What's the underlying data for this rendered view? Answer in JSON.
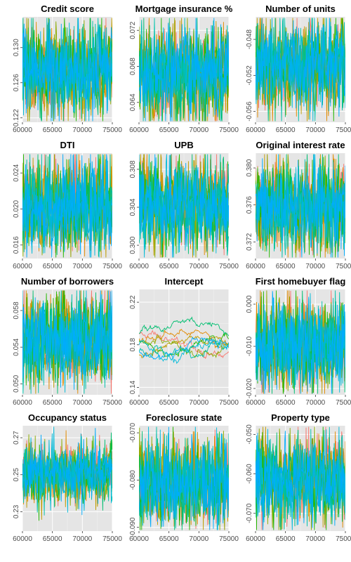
{
  "chart_data": [
    {
      "type": "line",
      "title": "Credit score",
      "xlim": [
        60000,
        75000
      ],
      "ylim": [
        0.1215,
        0.1335
      ],
      "x_ticks": [
        60000,
        65000,
        70000,
        75000
      ],
      "y_ticks": [
        0.122,
        0.126,
        0.13
      ],
      "y_tick_labels": [
        "0.122",
        "0.126",
        "0.130"
      ],
      "center": 0.1275,
      "spread": 0.0025,
      "kind": "noise",
      "grid": true
    },
    {
      "type": "line",
      "title": "Mortgage insurance %",
      "xlim": [
        60000,
        75000
      ],
      "ylim": [
        0.0618,
        0.0735
      ],
      "x_ticks": [
        60000,
        65000,
        70000,
        75000
      ],
      "y_ticks": [
        0.064,
        0.068,
        0.072
      ],
      "y_tick_labels": [
        "0.064",
        "0.068",
        "0.072"
      ],
      "center": 0.0672,
      "spread": 0.0026,
      "kind": "noise",
      "grid": true
    },
    {
      "type": "line",
      "title": "Number of units",
      "xlim": [
        60000,
        75000
      ],
      "ylim": [
        -0.0572,
        -0.0455
      ],
      "x_ticks": [
        60000,
        65000,
        70000,
        75000
      ],
      "y_ticks": [
        -0.056,
        -0.052,
        -0.048
      ],
      "y_tick_labels": [
        "-0.056",
        "-0.052",
        "-0.048"
      ],
      "center": -0.0508,
      "spread": 0.0024,
      "kind": "noise",
      "grid": true
    },
    {
      "type": "line",
      "title": "DTI",
      "xlim": [
        60000,
        75000
      ],
      "ylim": [
        0.0145,
        0.0262
      ],
      "x_ticks": [
        60000,
        65000,
        70000,
        75000
      ],
      "y_ticks": [
        0.016,
        0.02,
        0.024
      ],
      "y_tick_labels": [
        "0.016",
        "0.020",
        "0.024"
      ],
      "center": 0.0203,
      "spread": 0.0025,
      "kind": "noise",
      "grid": true
    },
    {
      "type": "line",
      "title": "UPB",
      "xlim": [
        60000,
        75000
      ],
      "ylim": [
        0.2986,
        0.3097
      ],
      "x_ticks": [
        60000,
        65000,
        70000,
        75000
      ],
      "y_ticks": [
        0.3,
        0.304,
        0.308
      ],
      "y_tick_labels": [
        "0.300",
        "0.304",
        "0.308"
      ],
      "center": 0.3043,
      "spread": 0.0023,
      "kind": "noise",
      "grid": true
    },
    {
      "type": "line",
      "title": "Original interest rate",
      "xlim": [
        60000,
        75000
      ],
      "ylim": [
        0.3702,
        0.3816
      ],
      "x_ticks": [
        60000,
        65000,
        70000,
        75000
      ],
      "y_ticks": [
        0.372,
        0.376,
        0.38
      ],
      "y_tick_labels": [
        "0.372",
        "0.376",
        "0.380"
      ],
      "center": 0.3758,
      "spread": 0.0024,
      "kind": "noise",
      "grid": true
    },
    {
      "type": "line",
      "title": "Number of borrowers",
      "xlim": [
        60000,
        75000
      ],
      "ylim": [
        0.0488,
        0.0603
      ],
      "x_ticks": [
        60000,
        65000,
        70000,
        75000
      ],
      "y_ticks": [
        0.05,
        0.054,
        0.058
      ],
      "y_tick_labels": [
        "0.050",
        "0.054",
        "0.058"
      ],
      "center": 0.0548,
      "spread": 0.0024,
      "kind": "noise",
      "grid": true
    },
    {
      "type": "line",
      "title": "Intercept",
      "xlim": [
        60000,
        75000
      ],
      "ylim": [
        0.133,
        0.232
      ],
      "x_ticks": [
        60000,
        65000,
        70000,
        75000
      ],
      "y_ticks": [
        0.14,
        0.18,
        0.22
      ],
      "y_tick_labels": [
        "0.14",
        "0.18",
        "0.22"
      ],
      "center": 0.18,
      "spread": 0.015,
      "kind": "walk",
      "grid": true
    },
    {
      "type": "line",
      "title": "First homebuyer flag",
      "xlim": [
        60000,
        75000
      ],
      "ylim": [
        -0.0215,
        0.0035
      ],
      "x_ticks": [
        60000,
        65000,
        70000,
        75000
      ],
      "y_ticks": [
        -0.02,
        -0.01,
        0.0
      ],
      "y_tick_labels": [
        "-0.020",
        "-0.010",
        "0.000"
      ],
      "center": -0.0097,
      "spread": 0.0052,
      "kind": "noise",
      "grid": true
    },
    {
      "type": "line",
      "title": "Occupancy status",
      "xlim": [
        60000,
        75000
      ],
      "ylim": [
        0.2195,
        0.2765
      ],
      "x_ticks": [
        60000,
        65000,
        70000,
        75000
      ],
      "y_ticks": [
        0.23,
        0.25,
        0.27
      ],
      "y_tick_labels": [
        "0.23",
        "0.25",
        "0.27"
      ],
      "center": 0.2505,
      "spread": 0.0075,
      "kind": "noise",
      "grid": true
    },
    {
      "type": "line",
      "title": "Foreclosure state",
      "xlim": [
        60000,
        75000
      ],
      "ylim": [
        -0.0908,
        -0.0685
      ],
      "x_ticks": [
        60000,
        65000,
        70000,
        75000
      ],
      "y_ticks": [
        -0.09,
        -0.08,
        -0.07
      ],
      "y_tick_labels": [
        "-0.090",
        "-0.080",
        "-0.070"
      ],
      "center": -0.0805,
      "spread": 0.0045,
      "kind": "noise",
      "grid": true
    },
    {
      "type": "line",
      "title": "Property type",
      "xlim": [
        60000,
        75000
      ],
      "ylim": [
        -0.0745,
        -0.0478
      ],
      "x_ticks": [
        60000,
        65000,
        70000,
        75000
      ],
      "y_ticks": [
        -0.07,
        -0.06,
        -0.05
      ],
      "y_tick_labels": [
        "-0.070",
        "-0.060",
        "-0.050"
      ],
      "center": -0.0615,
      "spread": 0.0052,
      "kind": "noise",
      "grid": true
    }
  ],
  "series_colors": [
    "#F8766D",
    "#E18A00",
    "#BE9C00",
    "#8CAB00",
    "#24B700",
    "#00BE70",
    "#00C1AB",
    "#00BBDA",
    "#00ACFC"
  ],
  "panel_background": "#E5E5E5",
  "grid_color": "#FFFFFF"
}
